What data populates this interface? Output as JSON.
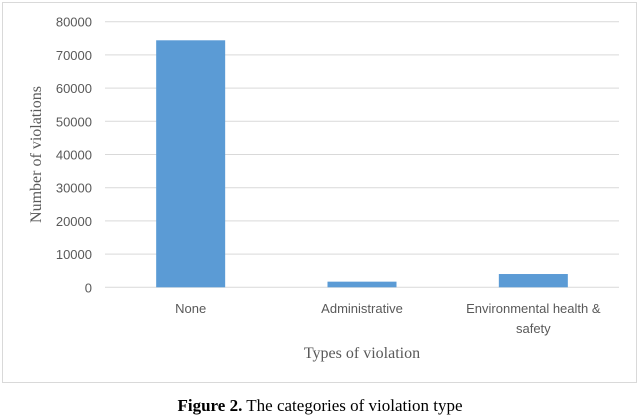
{
  "chart_data": {
    "type": "bar",
    "categories": [
      "None",
      "Administrative",
      "Environmental health & safety"
    ],
    "category_lines": [
      [
        "None"
      ],
      [
        "Administrative"
      ],
      [
        "Environmental health &",
        "safety"
      ]
    ],
    "values": [
      74400,
      1700,
      4000
    ],
    "xlabel": "Types of violation",
    "ylabel": "Number of violations",
    "ylim": [
      0,
      80000
    ],
    "yticks": [
      0,
      10000,
      20000,
      30000,
      40000,
      50000,
      60000,
      70000,
      80000
    ],
    "grid": true,
    "bar_color": "#5b9bd5",
    "grid_color": "#d9d9d9"
  },
  "caption": {
    "label": "Figure 2.",
    "text": " The categories of violation type"
  }
}
